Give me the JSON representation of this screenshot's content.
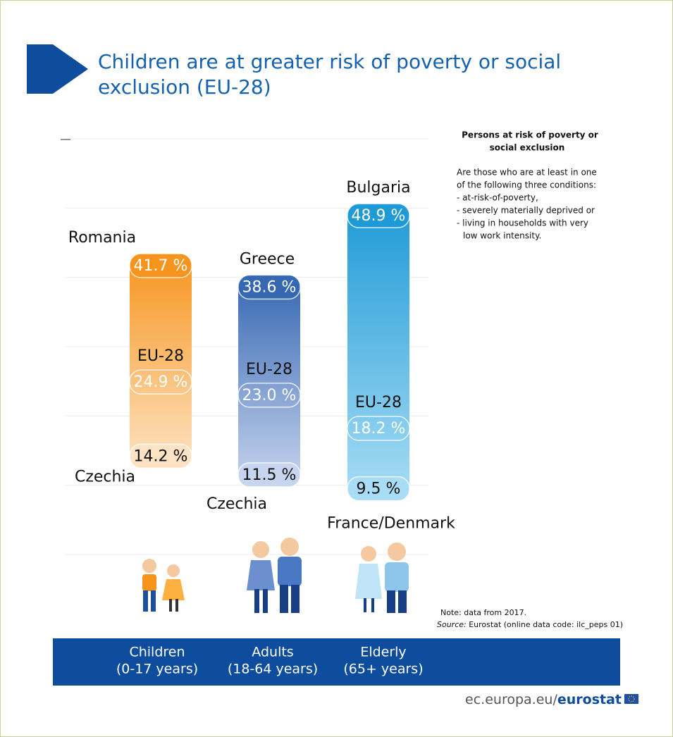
{
  "chart_data": {
    "type": "range",
    "title": [
      "Children are at greater risk of poverty or social",
      "exclusion (EU-28)"
    ],
    "categories": [
      "Children",
      "Adults",
      "Elderly"
    ],
    "category_subtitles": [
      "(0-17 years)",
      "(18-64 years)",
      "(65+ years)"
    ],
    "colors": [
      "#f7941d",
      "#3567b2",
      "#1e9ad6"
    ],
    "colors_light": [
      "#fde3c3",
      "#c8d5ee",
      "#a9ddf5"
    ],
    "max": {
      "countries": [
        "Romania",
        "Greece",
        "Bulgaria"
      ],
      "values": [
        41.7,
        38.6,
        48.9
      ],
      "value_labels": [
        "41.7 %",
        "38.6 %",
        "48.9 %"
      ]
    },
    "eu": {
      "name": "EU-28",
      "values": [
        24.9,
        23.0,
        18.2
      ],
      "value_labels": [
        "24.9 %",
        "23.0 %",
        "18.2 %"
      ]
    },
    "min": {
      "countries": [
        "Czechia",
        "Czechia",
        "France/Denmark"
      ],
      "values": [
        14.2,
        11.5,
        9.5
      ],
      "value_labels": [
        "14.2 %",
        "11.5 %",
        "9.5 %"
      ]
    },
    "ylim": [
      0,
      60
    ],
    "yticks": [
      0,
      10,
      20,
      30,
      40,
      50,
      60
    ],
    "grid": true,
    "definition": {
      "heading": [
        "Persons at risk of poverty or",
        "social exclusion"
      ],
      "lines": [
        "Are those who are at least in one",
        "of the following three conditions:",
        "- at-risk-of-poverty,",
        "- severely materially deprived or",
        "- living in households with very",
        "low work intensity."
      ]
    },
    "note": "Note: data from 2017.",
    "source_label": "Source:",
    "source": "Eurostat (online data code: ilc_peps 01)",
    "footer_site": "ec.europa.eu/",
    "footer_brand": "eurostat"
  }
}
